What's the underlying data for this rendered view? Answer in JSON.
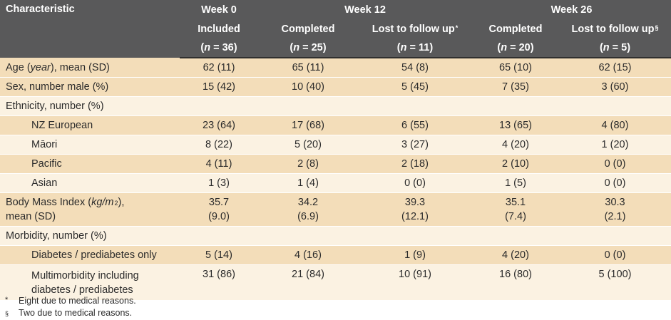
{
  "table": {
    "header": {
      "characteristic": "Characteristic",
      "week0": "Week 0",
      "week12": "Week 12",
      "week26": "Week 26",
      "included": "Included",
      "completed12": "Completed",
      "lost12": "Lost to follow up",
      "lost12_mark": "*",
      "completed26": "Completed",
      "lost26": "Lost to follow up",
      "lost26_mark": "§",
      "n0": "= 36)",
      "n1": "= 25)",
      "n2": "= 11)",
      "n3": "= 20)",
      "n4": "= 5)",
      "n_prefix": "(",
      "n_symbol": "n"
    },
    "rows": {
      "age": {
        "label_a": "Age (",
        "label_unit": "year",
        "label_b": "), mean (SD)",
        "v": [
          "62 (11)",
          "65 (11)",
          "54 (8)",
          "65 (10)",
          "62 (15)"
        ]
      },
      "sex": {
        "label": "Sex, number male (%)",
        "v": [
          "15 (42)",
          "10 (40)",
          "5 (45)",
          "7 (35)",
          "3 (60)"
        ]
      },
      "ethnicity": {
        "label": "Ethnicity, number (%)"
      },
      "nz": {
        "label": "NZ European",
        "v": [
          "23 (64)",
          "17 (68)",
          "6 (55)",
          "13 (65)",
          "4 (80)"
        ]
      },
      "maori": {
        "label": "Māori",
        "v": [
          "8 (22)",
          "5 (20)",
          "3 (27)",
          "4 (20)",
          "1 (20)"
        ]
      },
      "pacific": {
        "label": "Pacific",
        "v": [
          "4 (11)",
          "2 (8)",
          "2 (18)",
          "2 (10)",
          "0 (0)"
        ]
      },
      "asian": {
        "label": "Asian",
        "v": [
          "1 (3)",
          "1 (4)",
          "0 (0)",
          "1 (5)",
          "0 (0)"
        ]
      },
      "bmi": {
        "label_a": "Body Mass Index (",
        "label_unit": "kg/m",
        "label_sup": "2",
        "label_b": "),",
        "label_line2": "mean (SD)",
        "v": [
          [
            "35.7",
            "(9.0)"
          ],
          [
            "34.2",
            "(6.9)"
          ],
          [
            "39.3",
            "(12.1)"
          ],
          [
            "35.1",
            "(7.4)"
          ],
          [
            "30.3",
            "(2.1)"
          ]
        ]
      },
      "morbidity": {
        "label": "Morbidity, number (%)"
      },
      "diabetes": {
        "label": "Diabetes / prediabetes only",
        "v": [
          "5 (14)",
          "4 (16)",
          "1 (9)",
          "4 (20)",
          "0 (0)"
        ]
      },
      "multi": {
        "label_line1": "Multimorbidity including",
        "label_line2": "diabetes / prediabetes",
        "v": [
          "31 (86)",
          "21 (84)",
          "10 (91)",
          "16 (80)",
          "5 (100)"
        ]
      }
    }
  },
  "footnotes": [
    {
      "mark": "*",
      "text": "Eight due to medical reasons."
    },
    {
      "mark": "§",
      "text": "Two due to medical reasons."
    }
  ]
}
